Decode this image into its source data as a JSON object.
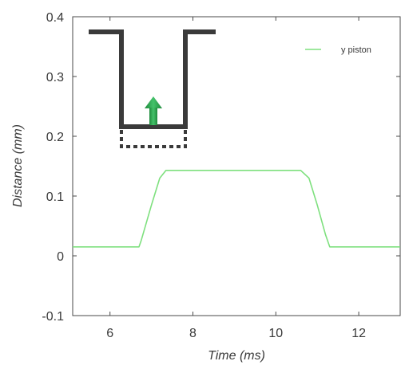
{
  "chart_data": {
    "type": "line",
    "xlabel": "Time (ms)",
    "ylabel": "Distance (mm)",
    "xlim": [
      5.1,
      13
    ],
    "ylim": [
      -0.1,
      0.4
    ],
    "grid": false,
    "legend_position": "top-right",
    "xticks": [
      6,
      8,
      10,
      12
    ],
    "xtick_labels": [
      "6",
      "8",
      "10",
      "12"
    ],
    "yticks": [
      -0.1,
      0,
      0.1,
      0.2,
      0.3,
      0.4
    ],
    "ytick_labels": [
      "-0.1",
      "0",
      "0.1",
      "0.2",
      "0.3",
      "0.4"
    ],
    "series": [
      {
        "name": "y piston",
        "color": "#7ee07e",
        "x": [
          5.1,
          6.7,
          6.75,
          7.0,
          7.2,
          7.35,
          10.6,
          10.8,
          11.0,
          11.2,
          11.3,
          13.0
        ],
        "y": [
          0.015,
          0.015,
          0.025,
          0.085,
          0.13,
          0.143,
          0.143,
          0.13,
          0.085,
          0.035,
          0.015,
          0.015
        ]
      }
    ],
    "inset_icon": "piston-well-with-up-arrow-icon",
    "inset_arrow_color": "#2fa84f"
  }
}
